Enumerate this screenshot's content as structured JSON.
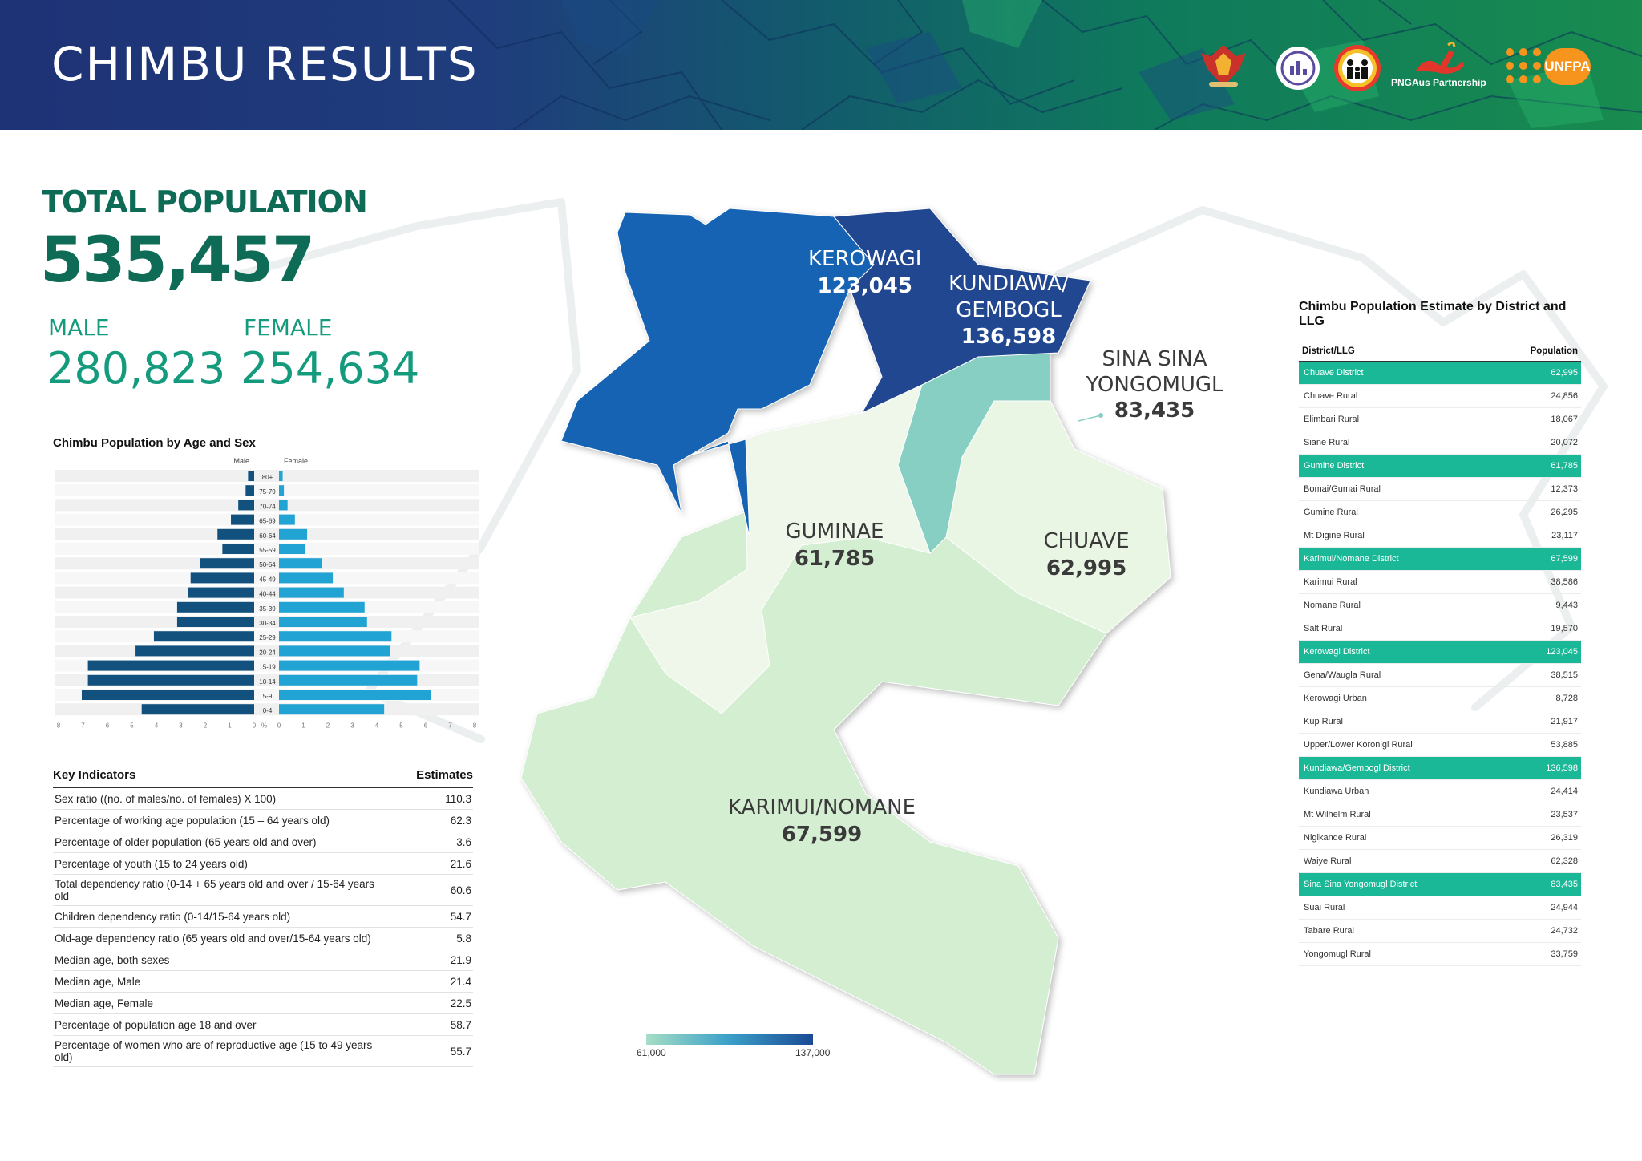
{
  "header": {
    "title": "CHIMBU RESULTS",
    "partner_text": "PNGAus Partnership",
    "unfpa_text": "UNFPA",
    "colors": {
      "dark_blue": "#1e3276",
      "green": "#188b4f"
    }
  },
  "totals": {
    "total_label": "TOTAL POPULATION",
    "total_value": "535,457",
    "male_label": "MALE",
    "male_value": "280,823",
    "female_label": "FEMALE",
    "female_value": "254,634"
  },
  "pyramid_title": "Chimbu Population by Age and Sex",
  "chart_data": {
    "type": "bar",
    "title": "Chimbu Population by Age and Sex",
    "orientation": "horizontal-pyramid",
    "xlabel": "%",
    "x_ticks_left": [
      "8",
      "7",
      "6",
      "5",
      "4",
      "3",
      "2",
      "1",
      "0"
    ],
    "x_ticks_right": [
      "0",
      "1",
      "2",
      "3",
      "4",
      "5",
      "6",
      "7",
      "8"
    ],
    "xlim": [
      0,
      8
    ],
    "categories": [
      "80+",
      "75-79",
      "70-74",
      "65-69",
      "60-64",
      "55-59",
      "50-54",
      "45-49",
      "40-44",
      "35-39",
      "30-34",
      "25-29",
      "20-24",
      "15-19",
      "10-14",
      "5-9",
      "0-4"
    ],
    "series": [
      {
        "name": "Male",
        "color": "#12507d",
        "values": [
          0.25,
          0.35,
          0.65,
          0.95,
          1.5,
          1.3,
          2.2,
          2.6,
          2.7,
          3.15,
          3.15,
          4.1,
          4.85,
          6.8,
          6.8,
          7.05,
          4.6
        ]
      },
      {
        "name": "Female",
        "color": "#21a3d3",
        "values": [
          0.15,
          0.2,
          0.35,
          0.65,
          1.15,
          1.05,
          1.75,
          2.2,
          2.65,
          3.5,
          3.6,
          4.6,
          4.55,
          5.75,
          5.65,
          6.2,
          4.3
        ]
      }
    ]
  },
  "key_indicators": {
    "header_label": "Key Indicators",
    "header_value": "Estimates",
    "rows": [
      {
        "label": "Sex ratio ((no. of males/no. of females) X 100)",
        "value": "110.3"
      },
      {
        "label": "Percentage of working age population (15 – 64 years old)",
        "value": "62.3"
      },
      {
        "label": "Percentage of older population (65 years old and over)",
        "value": "3.6"
      },
      {
        "label": "Percentage of youth (15 to 24 years old)",
        "value": "21.6"
      },
      {
        "label": "Total dependency ratio (0-14 + 65 years old and over / 15-64 years old",
        "value": "60.6"
      },
      {
        "label": "Children dependency ratio (0-14/15-64 years old)",
        "value": "54.7"
      },
      {
        "label": "Old-age dependency ratio (65 years old and over/15-64 years old)",
        "value": "5.8"
      },
      {
        "label": "Median age, both sexes",
        "value": "21.9"
      },
      {
        "label": "Median age, Male",
        "value": "21.4"
      },
      {
        "label": "Median age, Female",
        "value": "22.5"
      },
      {
        "label": "Percentage of population age 18 and over",
        "value": "58.7"
      },
      {
        "label": "Percentage of women who are of reproductive age (15 to 49 years old)",
        "value": "55.7"
      }
    ]
  },
  "map": {
    "districts": [
      {
        "name": "KEROWAGI",
        "value": "123,045",
        "color": "#1464b4"
      },
      {
        "name_line1": "KUNDIAWA/",
        "name_line2": "GEMBOGL",
        "value": "136,598",
        "color": "#234791"
      },
      {
        "name_line1": "SINA SINA",
        "name_line2": "YONGOMUGL",
        "value": "83,435",
        "color": "#87cfc2"
      },
      {
        "name": "GUMINAE",
        "value": "61,785",
        "color": "#eef7e9"
      },
      {
        "name": "CHUAVE",
        "value": "62,995",
        "color": "#eaf6e4"
      },
      {
        "name": "KARIMUI/NOMANE",
        "value": "67,599",
        "color": "#d4eed2"
      }
    ],
    "legend_min": "61,000",
    "legend_max": "137,000"
  },
  "district_table": {
    "title": "Chimbu Population Estimate by District and LLG",
    "col_name": "District/LLG",
    "col_value": "Population",
    "rows": [
      {
        "name": "Chuave District",
        "value": "62,995",
        "district": true
      },
      {
        "name": "Chuave Rural",
        "value": "24,856"
      },
      {
        "name": "Elimbari Rural",
        "value": "18,067"
      },
      {
        "name": "Siane Rural",
        "value": "20,072"
      },
      {
        "name": "Gumine District",
        "value": "61,785",
        "district": true
      },
      {
        "name": "Bomai/Gumai Rural",
        "value": "12,373"
      },
      {
        "name": "Gumine Rural",
        "value": "26,295"
      },
      {
        "name": "Mt Digine Rural",
        "value": "23,117"
      },
      {
        "name": "Karimui/Nomane District",
        "value": "67,599",
        "district": true
      },
      {
        "name": "Karimui Rural",
        "value": "38,586"
      },
      {
        "name": "Nomane Rural",
        "value": "9,443"
      },
      {
        "name": "Salt Rural",
        "value": "19,570"
      },
      {
        "name": "Kerowagi District",
        "value": "123,045",
        "district": true
      },
      {
        "name": "Gena/Waugla Rural",
        "value": "38,515"
      },
      {
        "name": "Kerowagi Urban",
        "value": "8,728"
      },
      {
        "name": "Kup Rural",
        "value": "21,917"
      },
      {
        "name": "Upper/Lower Koronigl Rural",
        "value": "53,885"
      },
      {
        "name": "Kundiawa/Gembogl District",
        "value": "136,598",
        "district": true
      },
      {
        "name": "Kundiawa Urban",
        "value": "24,414"
      },
      {
        "name": "Mt Wilhelm Rural",
        "value": "23,537"
      },
      {
        "name": "Niglkande Rural",
        "value": "26,319"
      },
      {
        "name": "Waiye Rural",
        "value": "62,328"
      },
      {
        "name": "Sina Sina Yongomugl District",
        "value": "83,435",
        "district": true
      },
      {
        "name": "Suai Rural",
        "value": "24,944"
      },
      {
        "name": "Tabare Rural",
        "value": "24,732"
      },
      {
        "name": "Yongomugl Rural",
        "value": "33,759"
      }
    ]
  }
}
